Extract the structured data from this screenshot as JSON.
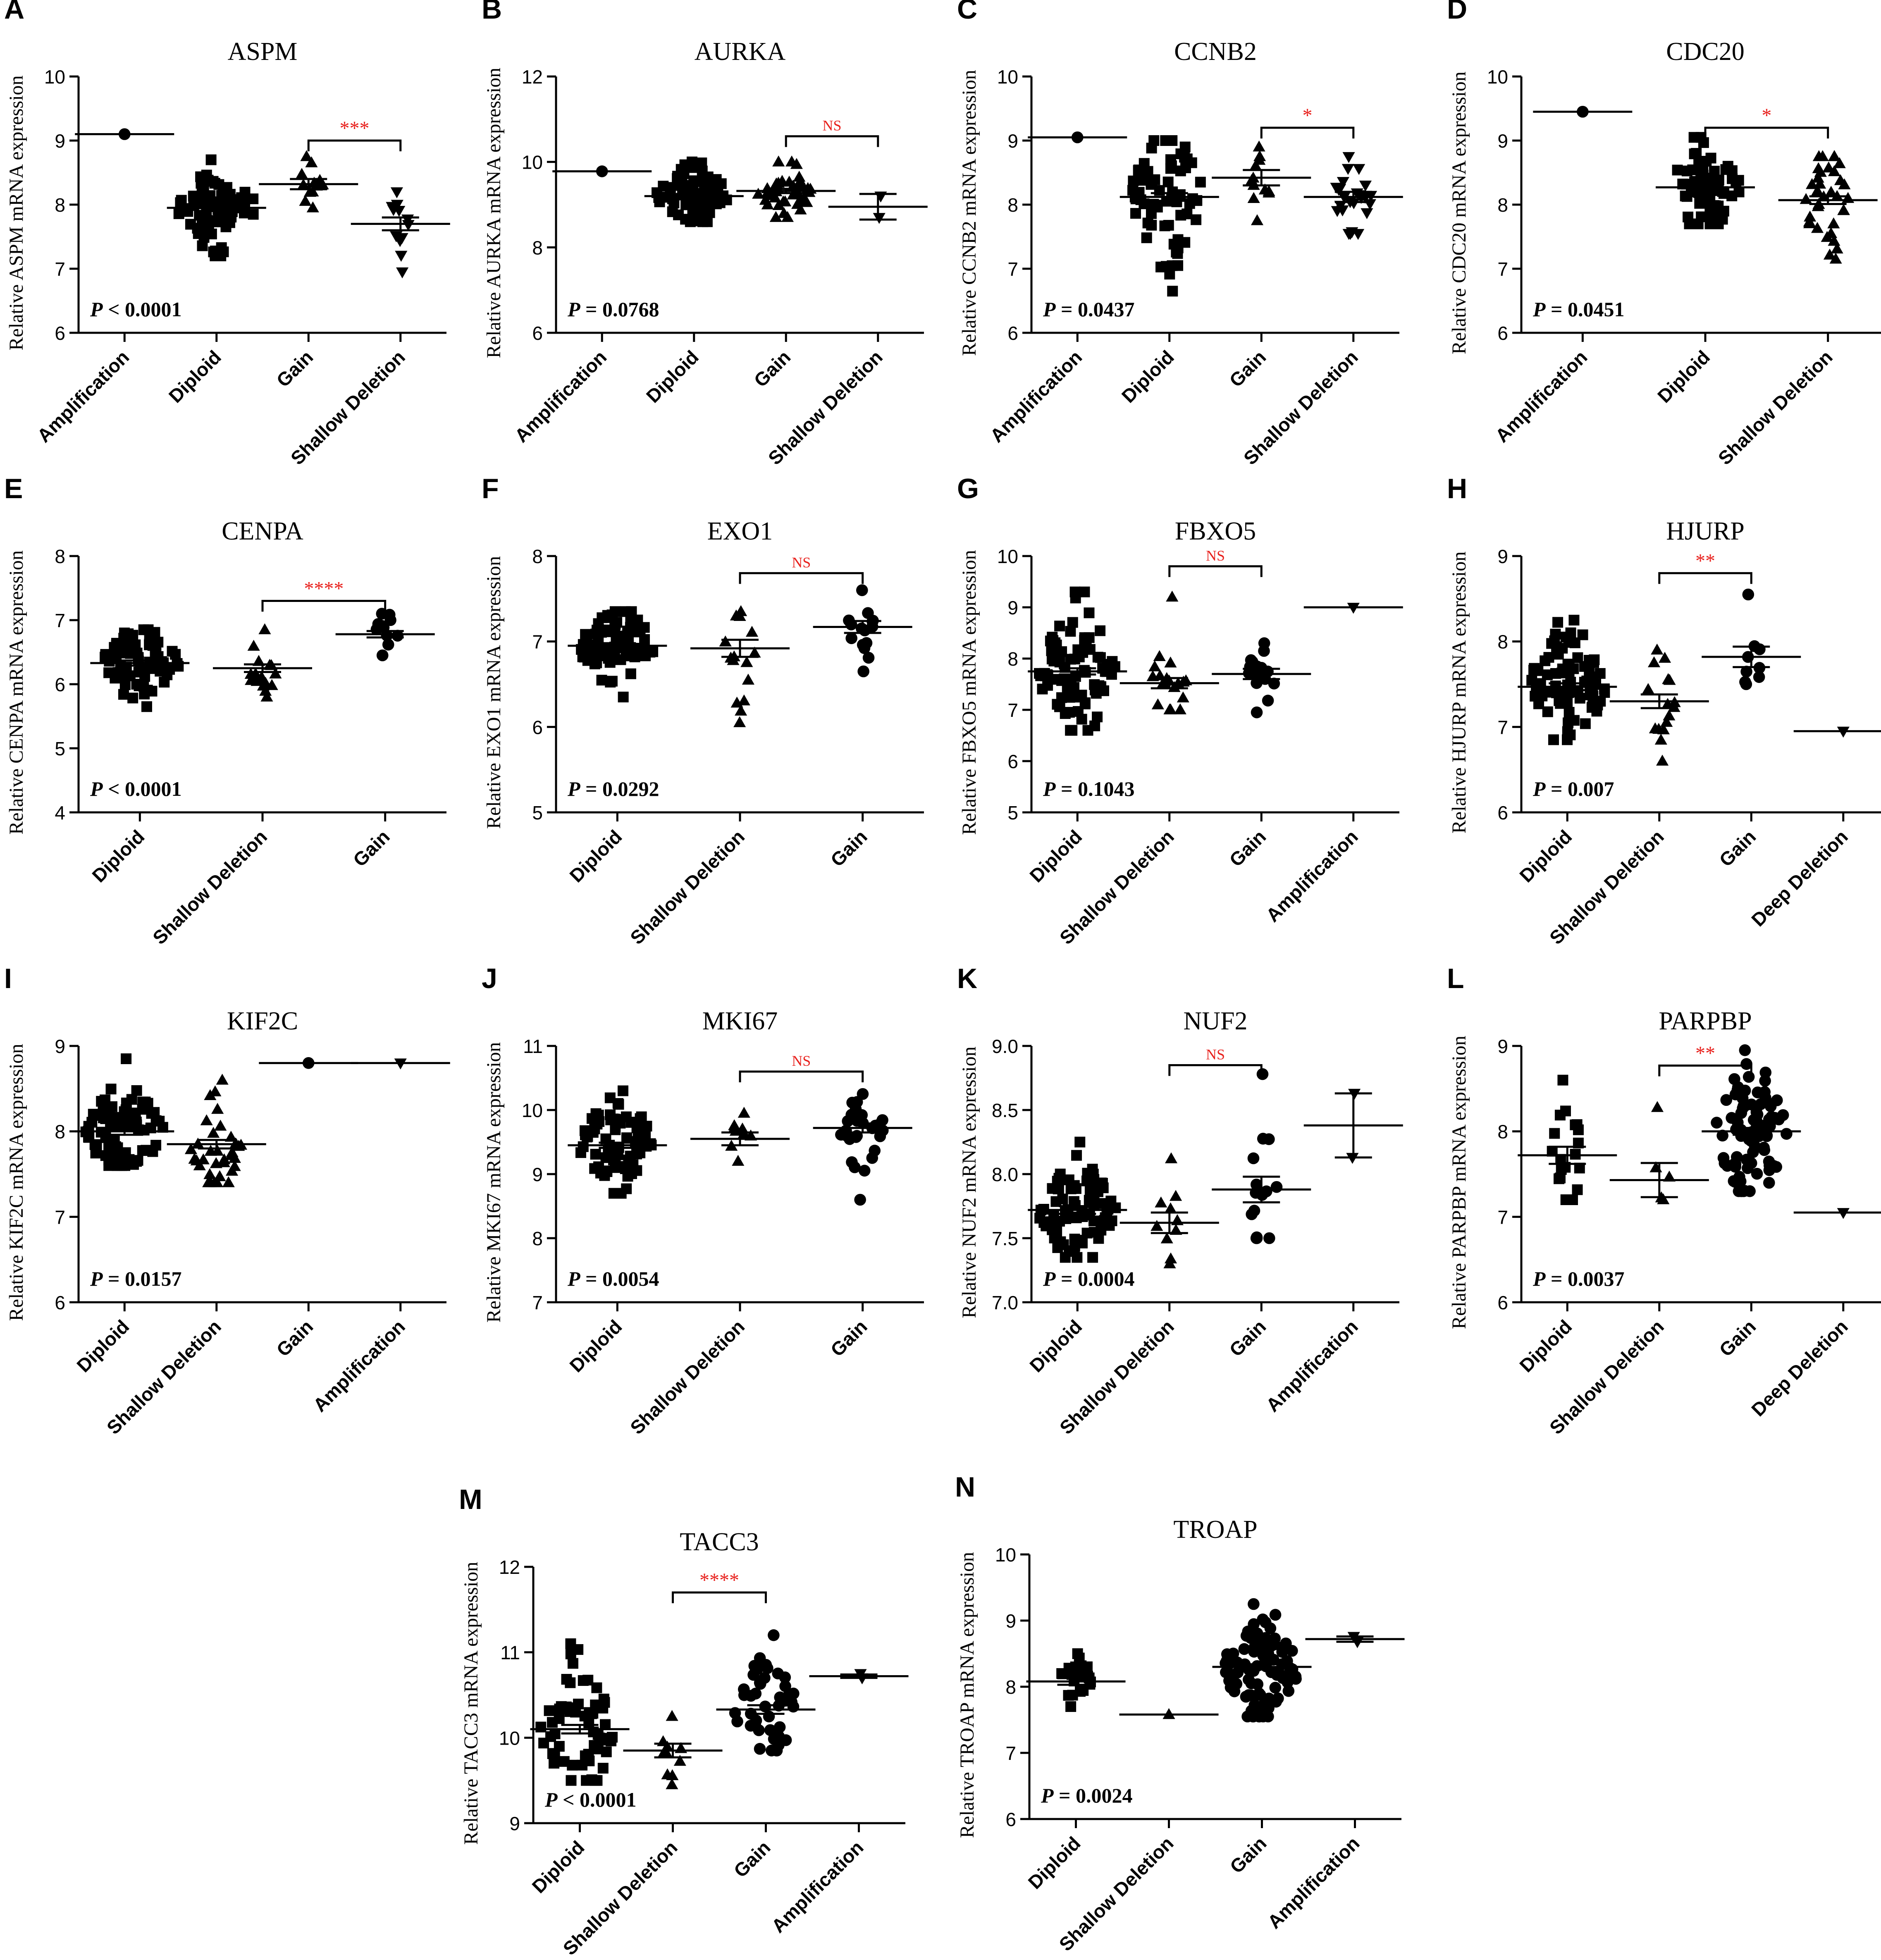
{
  "figure": {
    "y_axis_suffix": "mRNA expression",
    "y_axis_prefix": "Relative"
  },
  "colors": {
    "marker": "#000000",
    "axis": "#000000",
    "significance": "#e8201c"
  },
  "chart_data": [
    {
      "panel": "A",
      "title": "ASPM",
      "type": "scatter",
      "ylabel": "Relative ASPM mRNA expression",
      "ylim": [
        6,
        10
      ],
      "yticks": [
        6,
        7,
        8,
        9,
        10
      ],
      "ytick_labels": [
        "6",
        "7",
        "8",
        "9",
        "10"
      ],
      "categories": [
        "Amplification",
        "Diploid",
        "Gain",
        "Shallow Deletion"
      ],
      "groups": [
        {
          "category": "Amplification",
          "marker": "circle",
          "n": 1,
          "mean": 9.1,
          "sem": 0,
          "min": 9.1,
          "max": 9.1
        },
        {
          "category": "Diploid",
          "marker": "square",
          "n": 75,
          "mean": 7.95,
          "sem": 0.05,
          "min": 7.2,
          "max": 8.7
        },
        {
          "category": "Gain",
          "marker": "triangle-up",
          "n": 13,
          "mean": 8.32,
          "sem": 0.08,
          "min": 7.95,
          "max": 8.75
        },
        {
          "category": "Shallow Deletion",
          "marker": "triangle-down",
          "n": 12,
          "mean": 7.7,
          "sem": 0.1,
          "min": 6.95,
          "max": 8.2
        }
      ],
      "p_label": "P",
      "p_op": "< 0.0001",
      "significance": {
        "from": "Gain",
        "to": "Shallow Deletion",
        "y": 9.0,
        "label": "***"
      }
    },
    {
      "panel": "B",
      "title": "AURKA",
      "type": "scatter",
      "ylabel": "Relative AURKA mRNA expression",
      "ylim": [
        6,
        12
      ],
      "yticks": [
        6,
        8,
        10,
        12
      ],
      "ytick_labels": [
        "6",
        "8",
        "10",
        "12"
      ],
      "categories": [
        "Amplification",
        "Diploid",
        "Gain",
        "Shallow Deletion"
      ],
      "groups": [
        {
          "category": "Amplification",
          "marker": "circle",
          "n": 1,
          "mean": 9.78,
          "sem": 0,
          "min": 9.78,
          "max": 9.78
        },
        {
          "category": "Diploid",
          "marker": "square",
          "n": 70,
          "mean": 9.2,
          "sem": 0.05,
          "min": 8.6,
          "max": 10.0
        },
        {
          "category": "Gain",
          "marker": "triangle-up",
          "n": 40,
          "mean": 9.32,
          "sem": 0.05,
          "min": 8.7,
          "max": 10.0
        },
        {
          "category": "Shallow Deletion",
          "marker": "triangle-down",
          "n": 2,
          "mean": 8.95,
          "sem": 0.3,
          "min": 8.7,
          "max": 9.2
        }
      ],
      "p_label": "P",
      "p_op": "= 0.0768",
      "significance": {
        "from": "Gain",
        "to": "Shallow Deletion",
        "y": 10.6,
        "label": "NS"
      }
    },
    {
      "panel": "C",
      "title": "CCNB2",
      "type": "scatter",
      "ylabel": "Relative CCNB2 mRNA expression",
      "ylim": [
        6,
        10
      ],
      "yticks": [
        6,
        7,
        8,
        9,
        10
      ],
      "ytick_labels": [
        "6",
        "7",
        "8",
        "9",
        "10"
      ],
      "categories": [
        "Amplification",
        "Diploid",
        "Gain",
        "Shallow Deletion"
      ],
      "groups": [
        {
          "category": "Amplification",
          "marker": "circle",
          "n": 1,
          "mean": 9.05,
          "sem": 0,
          "min": 9.05,
          "max": 9.05
        },
        {
          "category": "Diploid",
          "marker": "square",
          "n": 65,
          "mean": 8.12,
          "sem": 0.06,
          "min": 6.65,
          "max": 9.0
        },
        {
          "category": "Gain",
          "marker": "triangle-up",
          "n": 12,
          "mean": 8.42,
          "sem": 0.12,
          "min": 7.75,
          "max": 8.9
        },
        {
          "category": "Shallow Deletion",
          "marker": "triangle-down",
          "n": 25,
          "mean": 8.12,
          "sem": 0.08,
          "min": 7.55,
          "max": 8.75
        }
      ],
      "p_label": "P",
      "p_op": "= 0.0437",
      "significance": {
        "from": "Gain",
        "to": "Shallow Deletion",
        "y": 9.2,
        "label": "*"
      }
    },
    {
      "panel": "D",
      "title": "CDC20",
      "type": "scatter",
      "ylabel": "Relative CDC20 mRNA expression",
      "ylim": [
        6,
        10
      ],
      "yticks": [
        6,
        7,
        8,
        9,
        10
      ],
      "ytick_labels": [
        "6",
        "7",
        "8",
        "9",
        "10"
      ],
      "categories": [
        "Amplification",
        "Diploid",
        "Shallow Deletion"
      ],
      "groups": [
        {
          "category": "Amplification",
          "marker": "circle",
          "n": 1,
          "mean": 9.45,
          "sem": 0,
          "min": 9.45,
          "max": 9.45
        },
        {
          "category": "Diploid",
          "marker": "square",
          "n": 70,
          "mean": 8.27,
          "sem": 0.05,
          "min": 7.7,
          "max": 9.05
        },
        {
          "category": "Shallow Deletion",
          "marker": "triangle-up",
          "n": 35,
          "mean": 8.07,
          "sem": 0.06,
          "min": 7.15,
          "max": 8.75
        }
      ],
      "p_label": "P",
      "p_op": "= 0.0451",
      "significance": {
        "from": "Diploid",
        "to": "Shallow Deletion",
        "y": 9.2,
        "label": "*"
      }
    },
    {
      "panel": "E",
      "title": "CENPA",
      "type": "scatter",
      "ylabel": "Relative CENPA mRNA expression",
      "ylim": [
        4,
        8
      ],
      "yticks": [
        4,
        5,
        6,
        7,
        8
      ],
      "ytick_labels": [
        "4",
        "5",
        "6",
        "7",
        "8"
      ],
      "categories": [
        "Diploid",
        "Shallow Deletion",
        "Gain"
      ],
      "groups": [
        {
          "category": "Diploid",
          "marker": "square",
          "n": 80,
          "mean": 6.33,
          "sem": 0.04,
          "min": 5.65,
          "max": 6.85
        },
        {
          "category": "Shallow Deletion",
          "marker": "triangle-up",
          "n": 18,
          "mean": 6.25,
          "sem": 0.06,
          "min": 5.8,
          "max": 6.85
        },
        {
          "category": "Gain",
          "marker": "circle",
          "n": 12,
          "mean": 6.78,
          "sem": 0.05,
          "min": 6.45,
          "max": 7.1
        }
      ],
      "p_label": "P",
      "p_op": "< 0.0001",
      "significance": {
        "from": "Shallow Deletion",
        "to": "Gain",
        "y": 7.3,
        "label": "****"
      }
    },
    {
      "panel": "F",
      "title": "EXO1",
      "type": "scatter",
      "ylabel": "Relative EXO1 mRNA expression",
      "ylim": [
        5,
        8
      ],
      "yticks": [
        5,
        6,
        7,
        8
      ],
      "ytick_labels": [
        "5",
        "6",
        "7",
        "8"
      ],
      "categories": [
        "Diploid",
        "Shallow Deletion",
        "Gain"
      ],
      "groups": [
        {
          "category": "Diploid",
          "marker": "square",
          "n": 80,
          "mean": 6.95,
          "sem": 0.03,
          "min": 6.35,
          "max": 7.35
        },
        {
          "category": "Shallow Deletion",
          "marker": "triangle-up",
          "n": 15,
          "mean": 6.92,
          "sem": 0.1,
          "min": 6.05,
          "max": 7.35
        },
        {
          "category": "Gain",
          "marker": "circle",
          "n": 16,
          "mean": 7.17,
          "sem": 0.07,
          "min": 6.65,
          "max": 7.6
        }
      ],
      "p_label": "P",
      "p_op": "= 0.0292",
      "significance": {
        "from": "Shallow Deletion",
        "to": "Gain",
        "y": 7.8,
        "label": "NS"
      }
    },
    {
      "panel": "G",
      "title": "FBXO5",
      "type": "scatter",
      "ylabel": "Relative FBXO5 mRNA expression",
      "ylim": [
        5,
        10
      ],
      "yticks": [
        5,
        6,
        7,
        8,
        9,
        10
      ],
      "ytick_labels": [
        "5",
        "6",
        "7",
        "8",
        "9",
        "10"
      ],
      "categories": [
        "Diploid",
        "Shallow Deletion",
        "Gain",
        "Amplification"
      ],
      "groups": [
        {
          "category": "Diploid",
          "marker": "square",
          "n": 85,
          "mean": 7.75,
          "sem": 0.06,
          "min": 6.6,
          "max": 9.3
        },
        {
          "category": "Shallow Deletion",
          "marker": "triangle-up",
          "n": 18,
          "mean": 7.52,
          "sem": 0.1,
          "min": 7.0,
          "max": 9.2
        },
        {
          "category": "Gain",
          "marker": "circle",
          "n": 16,
          "mean": 7.7,
          "sem": 0.1,
          "min": 6.95,
          "max": 8.3
        },
        {
          "category": "Amplification",
          "marker": "triangle-down",
          "n": 1,
          "mean": 9.0,
          "sem": 0,
          "min": 9.0,
          "max": 9.0
        }
      ],
      "p_label": "P",
      "p_op": "= 0.1043",
      "significance": {
        "from": "Shallow Deletion",
        "to": "Gain",
        "y": 9.8,
        "label": "NS"
      }
    },
    {
      "panel": "H",
      "title": "HJURP",
      "type": "scatter",
      "ylabel": "Relative HJURP mRNA expression",
      "ylim": [
        6,
        9
      ],
      "yticks": [
        6,
        7,
        8,
        9
      ],
      "ytick_labels": [
        "6",
        "7",
        "8",
        "9"
      ],
      "categories": [
        "Diploid",
        "Shallow Deletion",
        "Gain",
        "Deep Deletion"
      ],
      "groups": [
        {
          "category": "Diploid",
          "marker": "square",
          "n": 85,
          "mean": 7.47,
          "sem": 0.04,
          "min": 6.85,
          "max": 8.25
        },
        {
          "category": "Shallow Deletion",
          "marker": "triangle-up",
          "n": 16,
          "mean": 7.3,
          "sem": 0.08,
          "min": 6.6,
          "max": 7.9
        },
        {
          "category": "Gain",
          "marker": "circle",
          "n": 9,
          "mean": 7.82,
          "sem": 0.12,
          "min": 7.5,
          "max": 8.55
        },
        {
          "category": "Deep Deletion",
          "marker": "triangle-down",
          "n": 1,
          "mean": 6.95,
          "sem": 0,
          "min": 6.95,
          "max": 6.95
        }
      ],
      "p_label": "P",
      "p_op": "= 0.007",
      "significance": {
        "from": "Shallow Deletion",
        "to": "Gain",
        "y": 8.8,
        "label": "**"
      }
    },
    {
      "panel": "I",
      "title": "KIF2C",
      "type": "scatter",
      "ylabel": "Relative KIF2C mRNA expression",
      "ylim": [
        6,
        9
      ],
      "yticks": [
        6,
        7,
        8,
        9
      ],
      "ytick_labels": [
        "6",
        "7",
        "8",
        "9"
      ],
      "categories": [
        "Diploid",
        "Shallow Deletion",
        "Gain",
        "Amplification"
      ],
      "groups": [
        {
          "category": "Diploid",
          "marker": "square",
          "n": 80,
          "mean": 8.0,
          "sem": 0.04,
          "min": 7.6,
          "max": 8.85
        },
        {
          "category": "Shallow Deletion",
          "marker": "triangle-up",
          "n": 35,
          "mean": 7.85,
          "sem": 0.05,
          "min": 7.4,
          "max": 8.6
        },
        {
          "category": "Gain",
          "marker": "circle",
          "n": 1,
          "mean": 8.8,
          "sem": 0,
          "min": 8.8,
          "max": 8.8
        },
        {
          "category": "Amplification",
          "marker": "triangle-down",
          "n": 1,
          "mean": 8.8,
          "sem": 0,
          "min": 8.8,
          "max": 8.8
        }
      ],
      "p_label": "P",
      "p_op": "= 0.0157",
      "significance": null
    },
    {
      "panel": "J",
      "title": "MKI67",
      "type": "scatter",
      "ylabel": "Relative MKI67 mRNA expression",
      "ylim": [
        7,
        11
      ],
      "yticks": [
        7,
        8,
        9,
        10,
        11
      ],
      "ytick_labels": [
        "7",
        "8",
        "9",
        "10",
        "11"
      ],
      "categories": [
        "Diploid",
        "Shallow Deletion",
        "Gain"
      ],
      "groups": [
        {
          "category": "Diploid",
          "marker": "square",
          "n": 80,
          "mean": 9.45,
          "sem": 0.04,
          "min": 8.7,
          "max": 10.3
        },
        {
          "category": "Shallow Deletion",
          "marker": "triangle-up",
          "n": 9,
          "mean": 9.55,
          "sem": 0.1,
          "min": 9.2,
          "max": 9.95
        },
        {
          "category": "Gain",
          "marker": "circle",
          "n": 28,
          "mean": 9.72,
          "sem": 0.07,
          "min": 8.6,
          "max": 10.25
        }
      ],
      "p_label": "P",
      "p_op": "= 0.0054",
      "significance": {
        "from": "Shallow Deletion",
        "to": "Gain",
        "y": 10.6,
        "label": "NS"
      }
    },
    {
      "panel": "K",
      "title": "NUF2",
      "type": "scatter",
      "ylabel": "Relative NUF2 mRNA expression",
      "ylim": [
        7.0,
        9.0
      ],
      "yticks": [
        7.0,
        7.5,
        8.0,
        8.5,
        9.0
      ],
      "ytick_labels": [
        "7.0",
        "7.5",
        "8.0",
        "8.5",
        "9.0"
      ],
      "categories": [
        "Diploid",
        "Shallow Deletion",
        "Gain",
        "Amplification"
      ],
      "groups": [
        {
          "category": "Diploid",
          "marker": "square",
          "n": 90,
          "mean": 7.72,
          "sem": 0.03,
          "min": 7.35,
          "max": 8.25
        },
        {
          "category": "Shallow Deletion",
          "marker": "triangle-up",
          "n": 10,
          "mean": 7.62,
          "sem": 0.08,
          "min": 7.3,
          "max": 8.12
        },
        {
          "category": "Gain",
          "marker": "circle",
          "n": 15,
          "mean": 7.88,
          "sem": 0.1,
          "min": 7.5,
          "max": 8.78
        },
        {
          "category": "Amplification",
          "marker": "triangle-down",
          "n": 2,
          "mean": 8.38,
          "sem": 0.25,
          "min": 8.13,
          "max": 8.63
        }
      ],
      "p_label": "P",
      "p_op": "= 0.0004",
      "significance": {
        "from": "Shallow Deletion",
        "to": "Gain",
        "y": 8.85,
        "label": "NS"
      }
    },
    {
      "panel": "L",
      "title": "PARPBP",
      "type": "scatter",
      "ylabel": "Relative PARPBP mRNA expression",
      "ylim": [
        6,
        9
      ],
      "yticks": [
        6,
        7,
        8,
        9
      ],
      "ytick_labels": [
        "6",
        "7",
        "8",
        "9"
      ],
      "categories": [
        "Diploid",
        "Shallow Deletion",
        "Gain",
        "Deep Deletion"
      ],
      "groups": [
        {
          "category": "Diploid",
          "marker": "square",
          "n": 20,
          "mean": 7.72,
          "sem": 0.1,
          "min": 7.2,
          "max": 8.6
        },
        {
          "category": "Shallow Deletion",
          "marker": "triangle-up",
          "n": 5,
          "mean": 7.43,
          "sem": 0.2,
          "min": 7.2,
          "max": 8.28
        },
        {
          "category": "Gain",
          "marker": "circle",
          "n": 85,
          "mean": 8.0,
          "sem": 0.04,
          "min": 7.3,
          "max": 8.95
        },
        {
          "category": "Deep Deletion",
          "marker": "triangle-down",
          "n": 1,
          "mean": 7.05,
          "sem": 0,
          "min": 7.05,
          "max": 7.05
        }
      ],
      "p_label": "P",
      "p_op": "= 0.0037",
      "significance": {
        "from": "Shallow Deletion",
        "to": "Gain",
        "y": 8.77,
        "label": "**"
      }
    },
    {
      "panel": "M",
      "title": "TACC3",
      "type": "scatter",
      "ylabel": "Relative TACC3 mRNA expression",
      "ylim": [
        9,
        12
      ],
      "yticks": [
        9,
        10,
        11,
        12
      ],
      "ytick_labels": [
        "9",
        "10",
        "11",
        "12"
      ],
      "categories": [
        "Diploid",
        "Shallow Deletion",
        "Gain",
        "Amplification"
      ],
      "groups": [
        {
          "category": "Diploid",
          "marker": "square",
          "n": 60,
          "mean": 10.1,
          "sem": 0.05,
          "min": 9.5,
          "max": 11.1
        },
        {
          "category": "Shallow Deletion",
          "marker": "triangle-up",
          "n": 10,
          "mean": 9.85,
          "sem": 0.08,
          "min": 9.45,
          "max": 10.25
        },
        {
          "category": "Gain",
          "marker": "circle",
          "n": 45,
          "mean": 10.33,
          "sem": 0.05,
          "min": 9.85,
          "max": 11.2
        },
        {
          "category": "Amplification",
          "marker": "triangle-down",
          "n": 2,
          "mean": 10.72,
          "sem": 0.02,
          "min": 10.7,
          "max": 10.75
        }
      ],
      "p_label": "P",
      "p_op": "< 0.0001",
      "significance": {
        "from": "Shallow Deletion",
        "to": "Gain",
        "y": 11.7,
        "label": "****"
      }
    },
    {
      "panel": "N",
      "title": "TROAP",
      "type": "scatter",
      "ylabel": "Relative TROAP mRNA expression",
      "ylim": [
        6,
        10
      ],
      "yticks": [
        6,
        7,
        8,
        9,
        10
      ],
      "ytick_labels": [
        "6",
        "7",
        "8",
        "9",
        "10"
      ],
      "categories": [
        "Diploid",
        "Shallow Deletion",
        "Gain",
        "Amplification"
      ],
      "groups": [
        {
          "category": "Diploid",
          "marker": "square",
          "n": 22,
          "mean": 8.08,
          "sem": 0.05,
          "min": 7.7,
          "max": 8.5
        },
        {
          "category": "Shallow Deletion",
          "marker": "triangle-up",
          "n": 1,
          "mean": 7.58,
          "sem": 0,
          "min": 7.58,
          "max": 7.58
        },
        {
          "category": "Gain",
          "marker": "circle",
          "n": 90,
          "mean": 8.3,
          "sem": 0.04,
          "min": 7.55,
          "max": 9.25
        },
        {
          "category": "Amplification",
          "marker": "triangle-down",
          "n": 2,
          "mean": 8.72,
          "sem": 0.04,
          "min": 8.68,
          "max": 8.76
        }
      ],
      "p_label": "P",
      "p_op": "= 0.0024",
      "significance": null
    }
  ]
}
